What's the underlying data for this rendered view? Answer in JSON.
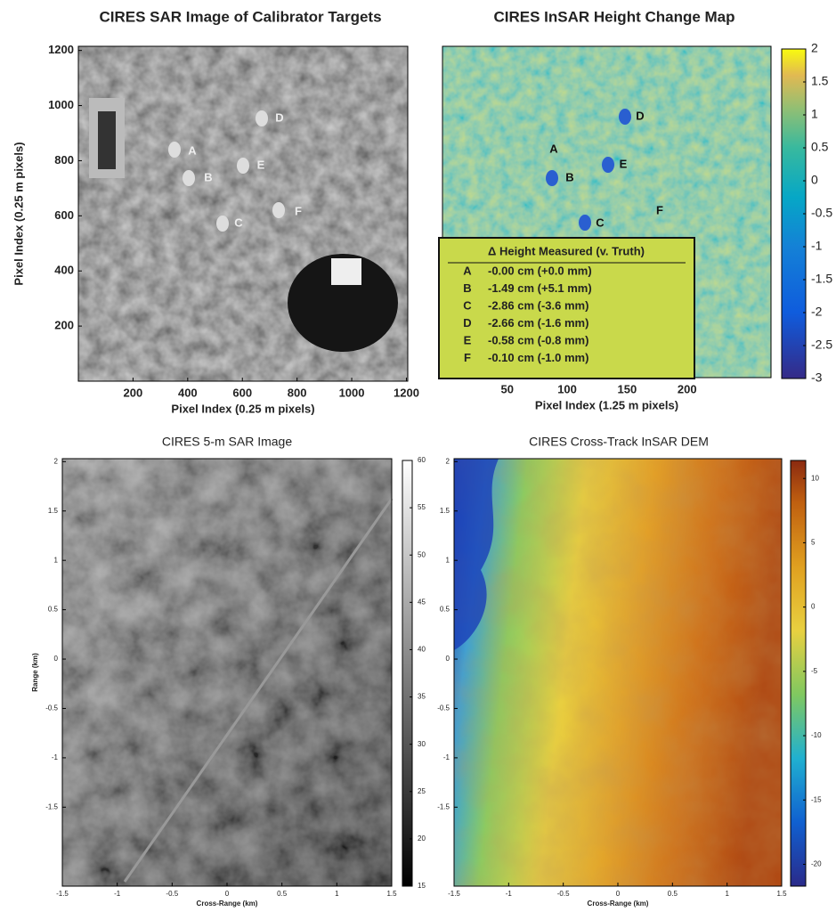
{
  "panels": [
    {
      "title": "CIRES SAR Image of Calibrator Targets",
      "xlabel": "Pixel Index (0.25 m pixels)",
      "ylabel": "Pixel Index (0.25 m pixels)",
      "xlim": [
        0,
        1205
      ],
      "xticks": [
        200,
        400,
        600,
        800,
        1000,
        1200
      ],
      "ylim": [
        0,
        1215
      ],
      "yticks": [
        200,
        400,
        600,
        800,
        1000,
        1200
      ],
      "targets": [
        "A",
        "B",
        "C",
        "D",
        "E",
        "F"
      ]
    },
    {
      "title": "CIRES InSAR Height Change Map",
      "xlabel": "Pixel Index (1.25 m pixels)",
      "xlim": [
        -4,
        270
      ],
      "xticks": [
        50,
        100,
        150,
        200
      ],
      "clim": [
        -3,
        2
      ],
      "cticks": [
        2,
        1.5,
        1,
        0.5,
        0,
        -0.5,
        -1,
        -1.5,
        -2,
        -2.5,
        -3
      ],
      "targets": [
        "A",
        "B",
        "C",
        "D",
        "E",
        "F"
      ],
      "legend": {
        "title": "Δ Height Measured (v. Truth)",
        "rows": [
          [
            "A",
            "-0.00 cm (+0.0 mm)"
          ],
          [
            "B",
            "-1.49 cm (+5.1 mm)"
          ],
          [
            "C",
            "-2.86 cm (-3.6 mm)"
          ],
          [
            "D",
            "-2.66 cm (-1.6 mm)"
          ],
          [
            "E",
            "-0.58 cm (-0.8 mm)"
          ],
          [
            "F",
            "-0.10 cm (-1.0 mm)"
          ]
        ]
      }
    },
    {
      "title": "CIRES 5-m SAR Image",
      "xlabel": "Cross-Range (km)",
      "ylabel": "Range (km)",
      "xlim": [
        -1.5,
        1.5
      ],
      "xticks": [
        -1.5,
        -1,
        -0.5,
        0,
        0.5,
        1,
        1.5
      ],
      "ylim": [
        -2.3,
        2.03
      ],
      "yticks": [
        -1.5,
        -1,
        -0.5,
        0,
        0.5,
        1,
        1.5,
        2
      ],
      "clim": [
        15,
        60
      ],
      "cticks": [
        15,
        20,
        25,
        30,
        35,
        40,
        45,
        50,
        55,
        60
      ]
    },
    {
      "title": "CIRES Cross-Track InSAR DEM",
      "xlabel": "Cross-Range (km)",
      "xlim": [
        -1.5,
        1.5
      ],
      "xticks": [
        -1.5,
        -1,
        -0.5,
        0,
        0.5,
        1,
        1.5
      ],
      "ylim": [
        -2.3,
        2.03
      ],
      "yticks": [
        -1.5,
        -1,
        -0.5,
        0,
        0.5,
        1,
        1.5,
        2
      ],
      "clim": [
        -21.7,
        11.4
      ],
      "cticks": [
        -20,
        -15,
        -10,
        -5,
        0,
        5,
        10
      ]
    }
  ]
}
